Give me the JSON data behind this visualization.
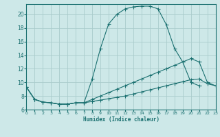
{
  "bg_color": "#cde8e8",
  "grid_color": "#aacccc",
  "line_color": "#1a7070",
  "xlabel": "Humidex (Indice chaleur)",
  "xlim": [
    0,
    23
  ],
  "ylim": [
    6,
    21.5
  ],
  "xticks": [
    0,
    1,
    2,
    3,
    4,
    5,
    6,
    7,
    8,
    9,
    10,
    11,
    12,
    13,
    14,
    15,
    16,
    17,
    18,
    19,
    20,
    21,
    22,
    23
  ],
  "yticks": [
    6,
    8,
    10,
    12,
    14,
    16,
    18,
    20
  ],
  "curve1_x": [
    0,
    1,
    2,
    3,
    4,
    5,
    6,
    7,
    8,
    9,
    10,
    11,
    12,
    13,
    14,
    15,
    16,
    17,
    18,
    19,
    20,
    21
  ],
  "curve1_y": [
    9.3,
    7.5,
    7.1,
    7.0,
    6.8,
    6.8,
    7.0,
    7.0,
    10.5,
    15.0,
    18.6,
    20.0,
    20.8,
    21.1,
    21.2,
    21.2,
    20.8,
    18.5,
    15.0,
    13.0,
    10.0,
    9.5
  ],
  "curve2_x": [
    0,
    1,
    2,
    3,
    4,
    5,
    6,
    7,
    8,
    9,
    10,
    11,
    12,
    13,
    14,
    15,
    16,
    17,
    18,
    19,
    20,
    21,
    22,
    23
  ],
  "curve2_y": [
    9.3,
    7.5,
    7.1,
    7.0,
    6.8,
    6.8,
    7.0,
    7.0,
    7.5,
    8.0,
    8.5,
    9.0,
    9.5,
    10.0,
    10.5,
    11.0,
    11.5,
    12.0,
    12.5,
    13.0,
    13.5,
    13.0,
    10.0,
    9.5
  ],
  "curve3_x": [
    0,
    1,
    2,
    3,
    4,
    5,
    6,
    7,
    8,
    9,
    10,
    11,
    12,
    13,
    14,
    15,
    16,
    17,
    18,
    19,
    20,
    21,
    22,
    23
  ],
  "curve3_y": [
    9.3,
    7.5,
    7.1,
    7.0,
    6.8,
    6.8,
    7.0,
    7.0,
    7.2,
    7.4,
    7.6,
    7.8,
    8.0,
    8.3,
    8.6,
    8.9,
    9.2,
    9.5,
    9.8,
    10.1,
    10.4,
    10.5,
    9.8,
    9.5
  ]
}
